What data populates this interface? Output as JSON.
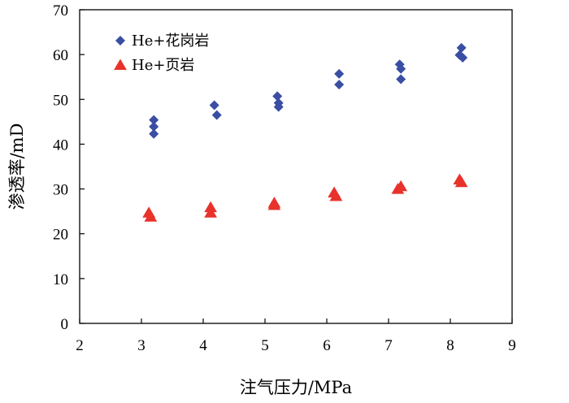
{
  "chart_data": {
    "type": "scatter",
    "xlabel": "注气压力/MPa",
    "ylabel": "渗透率/mD",
    "xlim": [
      2,
      9
    ],
    "ylim": [
      0,
      70
    ],
    "xticks": [
      2,
      3,
      4,
      5,
      6,
      7,
      8,
      9
    ],
    "yticks": [
      0,
      10,
      20,
      30,
      40,
      50,
      60,
      70
    ],
    "grid": false,
    "legend_position": "top-left",
    "series": [
      {
        "name": "He+花岗岩",
        "marker": "diamond",
        "color": "#3a4ea3",
        "points": [
          [
            3.2,
            45.4
          ],
          [
            3.2,
            43.9
          ],
          [
            3.2,
            42.3
          ],
          [
            4.18,
            48.7
          ],
          [
            4.22,
            46.5
          ],
          [
            5.2,
            50.7
          ],
          [
            5.22,
            49.2
          ],
          [
            5.22,
            48.3
          ],
          [
            6.2,
            55.7
          ],
          [
            6.2,
            53.3
          ],
          [
            7.18,
            57.8
          ],
          [
            7.2,
            56.8
          ],
          [
            7.2,
            54.5
          ],
          [
            8.18,
            61.5
          ],
          [
            8.15,
            59.9
          ],
          [
            8.2,
            59.3
          ]
        ]
      },
      {
        "name": "He+页岩",
        "marker": "triangle",
        "color": "#e8322b",
        "points": [
          [
            3.12,
            24.7
          ],
          [
            3.15,
            23.8
          ],
          [
            4.12,
            25.9
          ],
          [
            4.12,
            24.7
          ],
          [
            5.15,
            26.9
          ],
          [
            5.15,
            26.4
          ],
          [
            6.12,
            29.2
          ],
          [
            6.15,
            28.4
          ],
          [
            7.15,
            30.0
          ],
          [
            7.2,
            30.6
          ],
          [
            8.15,
            32.1
          ],
          [
            8.18,
            31.5
          ]
        ]
      }
    ]
  }
}
